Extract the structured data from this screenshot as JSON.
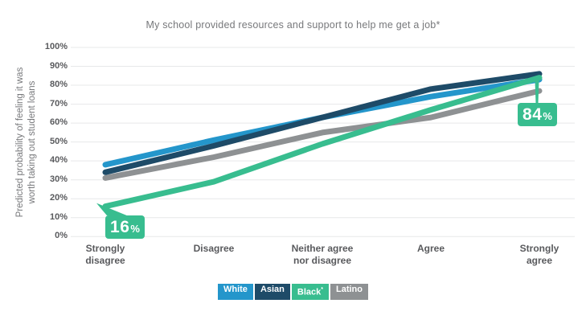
{
  "chart_data": {
    "type": "line",
    "title": "My school provided resources and support to help me get a job*",
    "ylabel": "Predicted probability of feeling it was worth taking out student loans",
    "ylabel_lines": [
      "Predicted probability of feeling it was",
      "worth taking out student loans"
    ],
    "xlabel": "",
    "categories": [
      "Strongly disagree",
      "Disagree",
      "Neither agree nor disagree",
      "Agree",
      "Strongly agree"
    ],
    "category_label_lines": [
      [
        "Strongly",
        "disagree"
      ],
      [
        "Disagree"
      ],
      [
        "Neither agree",
        "nor disagree"
      ],
      [
        "Agree"
      ],
      [
        "Strongly",
        "agree"
      ]
    ],
    "yticks": [
      "0%",
      "10%",
      "20%",
      "30%",
      "40%",
      "50%",
      "60%",
      "70%",
      "80%",
      "90%",
      "100%"
    ],
    "ylim": [
      0,
      100
    ],
    "grid": "horizontal",
    "legend_position": "bottom",
    "series": [
      {
        "name": "Latino",
        "sup": "",
        "color": "#8e9193",
        "values": [
          31,
          42,
          55,
          63,
          77
        ]
      },
      {
        "name": "White",
        "sup": "",
        "color": "#2496cb",
        "values": [
          38,
          51,
          63,
          74,
          83
        ]
      },
      {
        "name": "Asian",
        "sup": "",
        "color": "#1e4b68",
        "values": [
          34,
          48,
          63,
          78,
          86
        ]
      },
      {
        "name": "Black",
        "sup": "*",
        "color": "#38bd8f",
        "values": [
          16,
          29,
          49,
          67,
          84
        ]
      }
    ],
    "legend_order": [
      "White",
      "Asian",
      "Black",
      "Latino"
    ],
    "annotations": [
      {
        "series": "Black",
        "category": "Strongly disagree",
        "value": "16",
        "suffix": "%",
        "label": "16%"
      },
      {
        "series": "Black",
        "category": "Strongly agree",
        "value": "84",
        "suffix": "%",
        "label": "84%"
      }
    ],
    "colors": {
      "annotation_box": "#38bd8f",
      "gridline": "#e7e8e9",
      "tick_text": "#595a5d",
      "title_text": "#77787b"
    }
  }
}
